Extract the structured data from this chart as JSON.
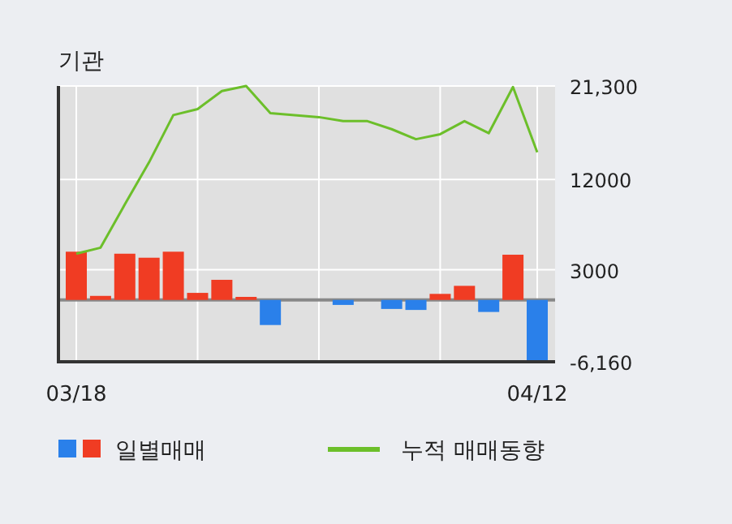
{
  "chart_data": {
    "type": "bar",
    "title": "기관",
    "categories": [
      "03/18",
      null,
      null,
      null,
      null,
      null,
      null,
      null,
      null,
      null,
      null,
      null,
      null,
      null,
      null,
      null,
      null,
      null,
      null,
      "04/12"
    ],
    "series": [
      {
        "name": "일별매매",
        "colors": [
          "#f03c23",
          "#f03c23",
          "#f03c23",
          "#f03c23",
          "#f03c23",
          "#f03c23",
          "#f03c23",
          "#f03c23",
          "#2a80ea",
          "#2a80ea",
          "#2a80ea",
          "#2a80ea",
          "#2a80ea",
          "#2a80ea",
          "#2a80ea",
          "#f03c23",
          "#f03c23",
          "#2a80ea",
          "#f03c23",
          "#2a80ea"
        ],
        "values": [
          4800,
          400,
          4600,
          4200,
          4800,
          700,
          2000,
          300,
          -2500,
          0,
          0,
          -500,
          0,
          -900,
          -1000,
          600,
          1400,
          -1200,
          4500,
          -6100
        ]
      },
      {
        "name": "누적 매매동향",
        "type": "line",
        "color": "#6cbf2a",
        "values": [
          4600,
          5200,
          9500,
          13700,
          18400,
          19000,
          20800,
          21300,
          18600,
          18400,
          18200,
          17800,
          17800,
          17000,
          16000,
          16500,
          17800,
          16600,
          21200,
          14700
        ]
      }
    ],
    "ylim": [
      -6160,
      21300
    ],
    "yticks": [
      {
        "value": 21300,
        "label": "21,300"
      },
      12000,
      3000,
      {
        "value": -6160,
        "label": "-6,160"
      }
    ],
    "ref_lines": [
      {
        "axis": "y",
        "value": 0,
        "color": "#888888"
      }
    ],
    "grid": true,
    "legend": "bottom"
  }
}
